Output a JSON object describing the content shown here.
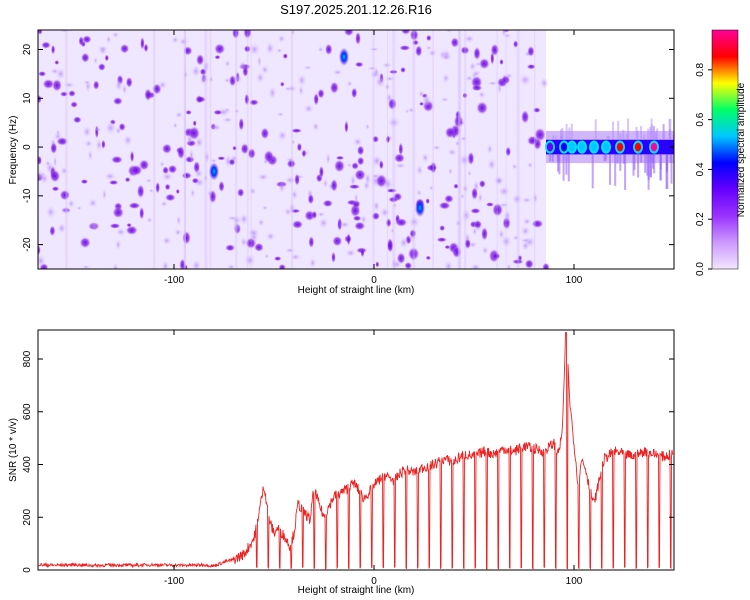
{
  "title": "S197.2025.201.12.26.R16",
  "chart_data": [
    {
      "type": "heatmap",
      "xlabel": "Height of straight line (km)",
      "ylabel": "Frequency (Hz)",
      "xlim": [
        -168,
        150
      ],
      "ylim": [
        -25,
        24
      ],
      "xticks": [
        -100,
        0,
        100
      ],
      "yticks": [
        -20,
        -10,
        0,
        10,
        20
      ],
      "colorbar": {
        "label": "Normalized spectral amplitude",
        "range": [
          0,
          0.96
        ],
        "ticks": [
          0.0,
          0.2,
          0.4,
          0.6,
          0.8
        ],
        "colormap": [
          "#f2e6ff",
          "#cc99ff",
          "#9933ff",
          "#6600ff",
          "#0000ff",
          "#00c8ff",
          "#00ff66",
          "#ffff00",
          "#ff0000",
          "#ff0099"
        ]
      },
      "noise_region": {
        "x": [
          -168,
          86
        ],
        "y": [
          -25,
          24
        ],
        "amplitude": [
          0.0,
          0.2
        ]
      },
      "empty_region": {
        "x": [
          86,
          150
        ]
      },
      "signal_band": {
        "x": [
          86,
          150
        ],
        "y_center": 0,
        "y_halfwidth": 1.5,
        "peaks": [
          {
            "x": 95,
            "y": 0,
            "amplitude": 0.45
          },
          {
            "x": 99,
            "y": 0,
            "amplitude": 0.5
          },
          {
            "x": 104,
            "y": 0,
            "amplitude": 0.5
          },
          {
            "x": 110,
            "y": 0,
            "amplitude": 0.55
          },
          {
            "x": 116,
            "y": 0,
            "amplitude": 0.5
          },
          {
            "x": 123,
            "y": 0,
            "amplitude": 0.9
          },
          {
            "x": 132,
            "y": 0,
            "amplitude": 0.9
          },
          {
            "x": 140,
            "y": 0,
            "amplitude": 0.92
          },
          {
            "x": 88,
            "y": 0,
            "amplitude": 0.35
          }
        ]
      },
      "hot_spots": [
        {
          "x": -80,
          "y": -5,
          "amplitude": 0.3
        },
        {
          "x": -15,
          "y": 18.5,
          "amplitude": 0.3
        },
        {
          "x": 23,
          "y": -12.5,
          "amplitude": 0.3
        }
      ]
    },
    {
      "type": "line",
      "xlabel": "Height of straight line (km)",
      "ylabel": "SNR (10 * v/v)",
      "xlim": [
        -168,
        150
      ],
      "ylim": [
        0,
        910
      ],
      "xticks": [
        -100,
        0,
        100
      ],
      "yticks": [
        0,
        200,
        400,
        600,
        800
      ],
      "color": "#ee2222",
      "x": [
        -168,
        -160,
        -150,
        -140,
        -130,
        -120,
        -110,
        -100,
        -90,
        -85,
        -80,
        -75,
        -70,
        -65,
        -60,
        -58,
        -55,
        -52,
        -50,
        -48,
        -45,
        -42,
        -40,
        -38,
        -35,
        -32,
        -30,
        -28,
        -25,
        -22,
        -20,
        -15,
        -10,
        -5,
        0,
        5,
        10,
        15,
        20,
        25,
        30,
        35,
        40,
        45,
        50,
        55,
        60,
        65,
        70,
        75,
        80,
        85,
        88,
        90,
        92,
        94,
        96,
        98,
        100,
        102,
        104,
        106,
        108,
        110,
        115,
        120,
        125,
        130,
        135,
        140,
        145,
        150
      ],
      "y": [
        20,
        18,
        20,
        17,
        19,
        18,
        20,
        18,
        18,
        20,
        15,
        30,
        40,
        60,
        120,
        200,
        320,
        180,
        140,
        160,
        130,
        90,
        140,
        250,
        220,
        190,
        310,
        260,
        200,
        250,
        280,
        300,
        330,
        270,
        320,
        360,
        340,
        380,
        370,
        390,
        400,
        420,
        410,
        440,
        430,
        450,
        440,
        460,
        450,
        470,
        460,
        450,
        470,
        480,
        440,
        510,
        900,
        630,
        480,
        330,
        420,
        380,
        300,
        250,
        420,
        450,
        440,
        430,
        450,
        440,
        430,
        440
      ]
    }
  ]
}
